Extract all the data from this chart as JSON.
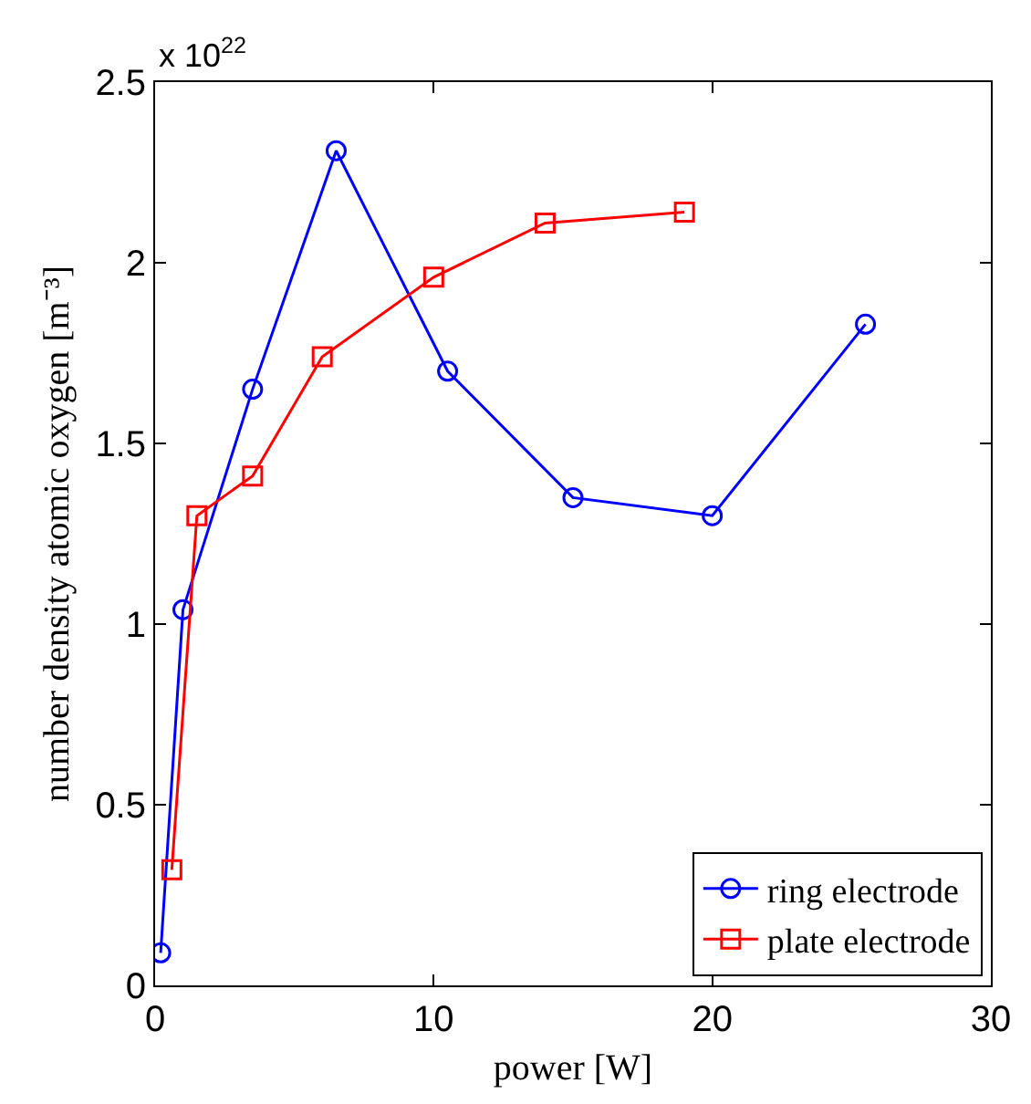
{
  "chart_data": {
    "type": "line",
    "xlabel": "power [W]",
    "ylabel": "number density atomic oxygen [m⁻³]",
    "annotations": [
      "x 10$^{22}$"
    ],
    "xlim": [
      0,
      30
    ],
    "xticks": [
      0,
      10,
      20,
      30
    ],
    "ylim": [
      0,
      2.5
    ],
    "yticks": [
      0,
      0.5,
      1,
      1.5,
      2,
      2.5
    ],
    "legend": "bottom right",
    "line_style": "solid",
    "series": [
      {
        "name": "ring electrode",
        "color": "#0000ff",
        "marker": "circle",
        "x": [
          0.2,
          1,
          3.5,
          6.5,
          10.5,
          15,
          20,
          25.5
        ],
        "values": [
          0.09,
          1.04,
          1.65,
          2.31,
          1.7,
          1.35,
          1.3,
          1.83
        ]
      },
      {
        "name": "plate electrode",
        "color": "#ff0000",
        "marker": "square",
        "x": [
          0.6,
          1.5,
          3.5,
          6,
          10,
          14,
          19
        ],
        "values": [
          0.32,
          1.3,
          1.41,
          1.74,
          1.96,
          2.11,
          2.14
        ]
      }
    ]
  }
}
